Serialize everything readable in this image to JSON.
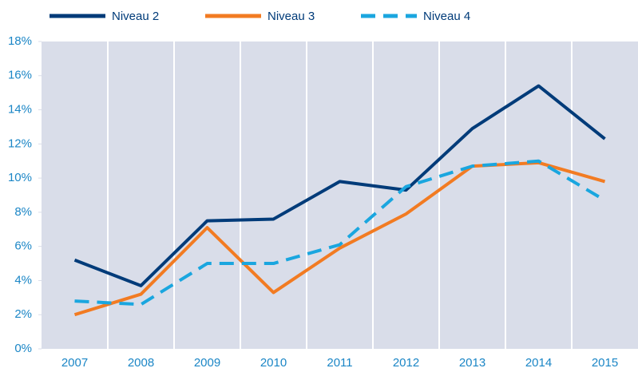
{
  "chart_data": {
    "type": "line",
    "categories": [
      "2007",
      "2008",
      "2009",
      "2010",
      "2011",
      "2012",
      "2013",
      "2014",
      "2015"
    ],
    "series": [
      {
        "name": "Niveau 2",
        "color": "#003b79",
        "values": [
          5.2,
          3.7,
          7.5,
          7.6,
          9.8,
          9.3,
          12.9,
          15.4,
          12.3
        ]
      },
      {
        "name": "Niveau 3",
        "color": "#f27b22",
        "values": [
          2.0,
          3.2,
          7.1,
          3.3,
          5.9,
          7.9,
          10.7,
          10.9,
          9.8
        ]
      },
      {
        "name": "Niveau 4",
        "color": "#1aa6df",
        "dashed": true,
        "values": [
          2.8,
          2.6,
          5.0,
          5.0,
          6.1,
          9.5,
          10.7,
          11.0,
          8.7
        ]
      }
    ],
    "ylim": [
      0,
      18
    ],
    "yticks": [
      {
        "value": 0,
        "label": "0%"
      },
      {
        "value": 2,
        "label": "2%"
      },
      {
        "value": 4,
        "label": "4%"
      },
      {
        "value": 6,
        "label": "6%"
      },
      {
        "value": 8,
        "label": "8%"
      },
      {
        "value": 10,
        "label": "10%"
      },
      {
        "value": 12,
        "label": "12%"
      },
      {
        "value": 14,
        "label": "14%"
      },
      {
        "value": 16,
        "label": "16%"
      },
      {
        "value": 18,
        "label": "18%"
      }
    ],
    "legend": "top"
  }
}
